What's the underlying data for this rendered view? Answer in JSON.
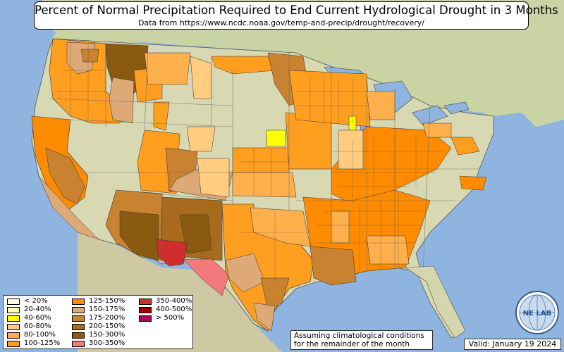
{
  "title": "Percent of Normal Precipitation Required to End Current Hydrological Drought in 3 Months",
  "subtitle": "Data from https://www.ncdc.noaa.gov/temp-and-precip/drought/recovery/",
  "legend": [
    {
      "label": "< 20%",
      "color": "#ffffe6"
    },
    {
      "label": "20-40%",
      "color": "#ffffb0"
    },
    {
      "label": "40-60%",
      "color": "#ffff00"
    },
    {
      "label": "60-80%",
      "color": "#ffcc80"
    },
    {
      "label": "80-100%",
      "color": "#ffb04d"
    },
    {
      "label": "100-125%",
      "color": "#ff9e1f"
    },
    {
      "label": "125-150%",
      "color": "#ff8c00"
    },
    {
      "label": "150-175%",
      "color": "#ddaa77"
    },
    {
      "label": "175-200%",
      "color": "#c98230"
    },
    {
      "label": "200-150%",
      "color": "#a86a1c"
    },
    {
      "label": "150-300%",
      "color": "#8a5a10"
    },
    {
      "label": "300-350%",
      "color": "#f27a7a"
    },
    {
      "label": "350-400%",
      "color": "#d02e2e"
    },
    {
      "label": "400-500%",
      "color": "#a00000"
    },
    {
      "label": "> 500%",
      "color": "#a0105a"
    }
  ],
  "note_line1": "Assuming climatological conditions",
  "note_line2": "for the remainder of the month",
  "valid": "Valid: January 19 2024",
  "logo": {
    "text": "NE LAB",
    "icon": "nexlab-globe-logo"
  }
}
